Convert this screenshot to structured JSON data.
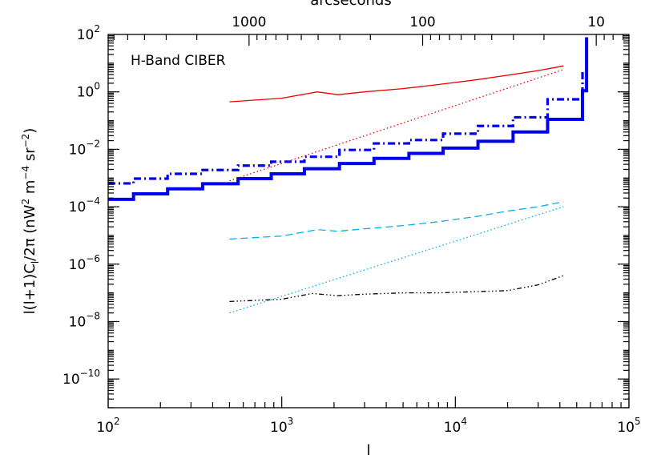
{
  "chart_data": {
    "type": "line",
    "annotation": "H-Band CIBER",
    "xlabel": "l",
    "ylabel_parts": {
      "main": "l(l+1)C",
      "sub": "l",
      "after": "/2π  (nW",
      "sup1": "2",
      "mid": " m",
      "sup2": "−4",
      "mid2": " sr",
      "sup3": "−2",
      "end": ")"
    },
    "top_label": "arcseconds",
    "x_scale": "log",
    "y_scale": "log",
    "xlim": [
      100,
      100000
    ],
    "ylim": [
      1e-11,
      100
    ],
    "x_ticks": [
      {
        "value": 100,
        "base": "10",
        "exp": "2"
      },
      {
        "value": 1000,
        "base": "10",
        "exp": "3"
      },
      {
        "value": 10000,
        "base": "10",
        "exp": "4"
      },
      {
        "value": 100000,
        "base": "10",
        "exp": "5"
      }
    ],
    "y_ticks": [
      {
        "value": 1e-10,
        "base": "10",
        "exp": "−10"
      },
      {
        "value": 1e-08,
        "base": "10",
        "exp": "−8"
      },
      {
        "value": 1e-06,
        "base": "10",
        "exp": "−6"
      },
      {
        "value": 0.0001,
        "base": "10",
        "exp": "−4"
      },
      {
        "value": 0.01,
        "base": "10",
        "exp": "−2"
      },
      {
        "value": 1,
        "base": "10",
        "exp": "0"
      },
      {
        "value": 100,
        "base": "10",
        "exp": "2"
      }
    ],
    "top_ticks": [
      {
        "arcsec": 1000,
        "label": "1000"
      },
      {
        "arcsec": 100,
        "label": "100"
      },
      {
        "arcsec": 10,
        "label": "10"
      }
    ],
    "series": [
      {
        "style": "step",
        "color": "#0000ee",
        "width": 4,
        "dash": "",
        "x": [
          100,
          140,
          220,
          350,
          560,
          870,
          1350,
          2150,
          3400,
          5400,
          8500,
          13500,
          21500,
          34000,
          54000,
          57000
        ],
        "y": [
          0.00018,
          0.00028,
          0.00042,
          0.00063,
          0.00095,
          0.0014,
          0.0021,
          0.0032,
          0.0048,
          0.0072,
          0.011,
          0.019,
          0.04,
          0.11,
          1.1,
          80
        ]
      },
      {
        "style": "step",
        "color": "#0000ee",
        "width": 3.2,
        "dash": "9 4 2 4",
        "x": [
          100,
          140,
          220,
          350,
          560,
          870,
          1350,
          2150,
          3400,
          5400,
          8500,
          13500,
          21500,
          34000,
          54000,
          57000
        ],
        "y": [
          0.00065,
          0.00095,
          0.0014,
          0.0019,
          0.0027,
          0.0037,
          0.0055,
          0.0095,
          0.016,
          0.021,
          0.035,
          0.065,
          0.13,
          0.55,
          5,
          80
        ]
      },
      {
        "style": "line",
        "color": "#ee0000",
        "width": 1.3,
        "dash": "",
        "x": [
          500,
          1000,
          1600,
          2100,
          3000,
          5000,
          8000,
          13000,
          20000,
          30000,
          42000
        ],
        "y": [
          0.45,
          0.6,
          1,
          0.8,
          1,
          1.3,
          1.8,
          2.6,
          3.8,
          5.5,
          8
        ]
      },
      {
        "style": "line",
        "color": "#ee0000",
        "width": 1.3,
        "dash": "1.5 3",
        "x": [
          500,
          42000
        ],
        "y": [
          0.0008,
          6
        ]
      },
      {
        "style": "line",
        "color": "#00b0e8",
        "width": 1.3,
        "dash": "9 5",
        "x": [
          500,
          1000,
          1600,
          2100,
          3000,
          5000,
          8000,
          13000,
          20000,
          30000,
          42000
        ],
        "y": [
          7.5e-06,
          9.5e-06,
          1.6e-05,
          1.4e-05,
          1.7e-05,
          2.2e-05,
          3e-05,
          4.5e-05,
          7e-05,
          0.0001,
          0.00015
        ]
      },
      {
        "style": "line",
        "color": "#00b0e8",
        "width": 1.3,
        "dash": "1.5 3",
        "x": [
          500,
          42000
        ],
        "y": [
          2e-08,
          0.0001
        ]
      },
      {
        "style": "line",
        "color": "#000000",
        "width": 1.3,
        "dash": "6 3 1.5 3 1.5 3 1.5 3",
        "x": [
          500,
          1000,
          1500,
          2100,
          3000,
          5000,
          8000,
          13000,
          20000,
          30000,
          42000
        ],
        "y": [
          5e-08,
          6e-08,
          9.5e-08,
          8e-08,
          9e-08,
          1e-07,
          1e-07,
          1.1e-07,
          1.2e-07,
          1.9e-07,
          4e-07
        ]
      }
    ]
  }
}
